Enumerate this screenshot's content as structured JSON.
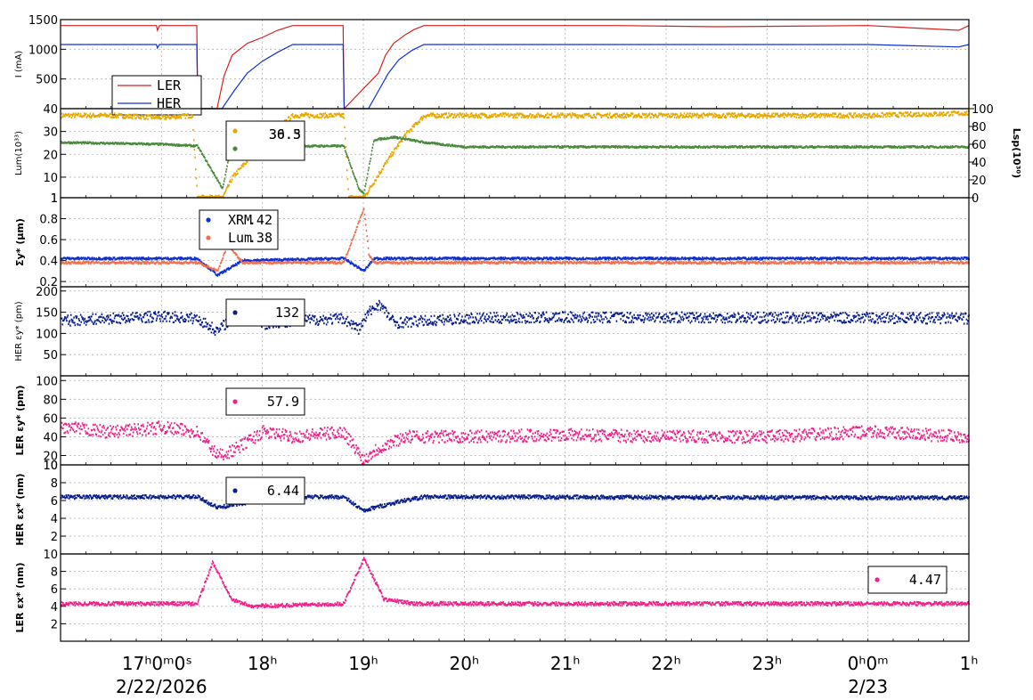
{
  "colors": {
    "red": "#d62020",
    "blue": "#1030d0",
    "orange": "#e8a800",
    "green": "#4a8a3c",
    "navy": "#0a1f8a",
    "pink": "#f0208a",
    "salmon": "#f07050",
    "grid": "#b0b0b0"
  },
  "x_axis": {
    "range_hours": [
      16.0,
      25.0
    ],
    "ticks": [
      {
        "h": 17.0,
        "label": "17ʰ0ᵐ0ˢ"
      },
      {
        "h": 18.0,
        "label": "18ʰ"
      },
      {
        "h": 19.0,
        "label": "19ʰ"
      },
      {
        "h": 20.0,
        "label": "20ʰ"
      },
      {
        "h": 21.0,
        "label": "21ʰ"
      },
      {
        "h": 22.0,
        "label": "22ʰ"
      },
      {
        "h": 23.0,
        "label": "23ʰ"
      },
      {
        "h": 24.0,
        "label": "0ʰ0ᵐ"
      },
      {
        "h": 25.0,
        "label": "1ʰ"
      }
    ],
    "date_labels": [
      {
        "h": 17.0,
        "label": "2/22/2026"
      },
      {
        "h": 24.0,
        "label": "2/23"
      }
    ]
  },
  "chart_data": [
    {
      "type": "line",
      "ylabel": "I (mA)",
      "ylim": [
        0,
        1500
      ],
      "yticks": [
        500,
        1000,
        1500
      ],
      "legend": {
        "position": "top-left",
        "entries": [
          {
            "name": "LER",
            "color": "#d62020"
          },
          {
            "name": "HER",
            "color": "#1030d0"
          }
        ]
      },
      "series": [
        {
          "name": "LER",
          "x": [
            16.0,
            16.95,
            16.96,
            16.98,
            17.35,
            17.36,
            17.55,
            17.62,
            17.7,
            17.85,
            18.0,
            18.15,
            18.3,
            18.8,
            18.81,
            19.15,
            19.22,
            19.3,
            19.42,
            19.5,
            19.6,
            19.8,
            21.5,
            22.5,
            24.0,
            24.9,
            25.0
          ],
          "y": [
            1400,
            1400,
            1320,
            1400,
            1400,
            0,
            0,
            550,
            900,
            1100,
            1200,
            1320,
            1400,
            1400,
            0,
            600,
            900,
            1100,
            1250,
            1330,
            1400,
            1400,
            1400,
            1380,
            1400,
            1320,
            1400
          ]
        },
        {
          "name": "HER",
          "x": [
            16.0,
            16.95,
            16.96,
            16.98,
            17.35,
            17.36,
            17.6,
            17.72,
            17.85,
            18.0,
            18.15,
            18.3,
            18.8,
            18.81,
            19.05,
            19.15,
            19.25,
            19.35,
            19.48,
            19.6,
            19.8,
            22.5,
            24.0,
            24.9,
            25.0
          ],
          "y": [
            1080,
            1080,
            1020,
            1080,
            1080,
            0,
            0,
            300,
            600,
            800,
            950,
            1080,
            1080,
            0,
            0,
            300,
            600,
            820,
            980,
            1080,
            1080,
            1080,
            1080,
            1040,
            1080
          ]
        }
      ]
    },
    {
      "type": "scatter",
      "ylabel": "Lum(10³³)",
      "ylim": [
        1,
        40
      ],
      "yticks": [
        1,
        10,
        20,
        30,
        40
      ],
      "y2label": "Lsp(10³⁰)",
      "y2lim": [
        0,
        100
      ],
      "y2ticks": [
        0,
        20,
        40,
        60,
        80,
        100
      ],
      "legend": {
        "position": "top-left",
        "entries": [
          {
            "value": "36.3",
            "color": "#e8a800"
          },
          {
            "value": "30.5",
            "color": "#4a8a3c"
          }
        ]
      },
      "series": [
        {
          "name": "Lum",
          "axis": "left",
          "x": [
            16.0,
            16.5,
            17.0,
            17.3,
            17.35,
            17.6,
            17.7,
            17.9,
            18.1,
            18.3,
            18.8,
            18.85,
            19.0,
            19.2,
            19.4,
            19.6,
            20.0,
            21.0,
            22.0,
            23.0,
            24.0,
            25.0
          ],
          "y": [
            37,
            37,
            36,
            37,
            1,
            1,
            10,
            20,
            30,
            37,
            37,
            1,
            1,
            15,
            28,
            37,
            37,
            37,
            37,
            37,
            37,
            38
          ]
        },
        {
          "name": "Lsp",
          "axis": "right",
          "x": [
            16.0,
            17.0,
            17.35,
            17.6,
            17.7,
            18.0,
            18.3,
            18.8,
            18.95,
            19.0,
            19.1,
            19.3,
            19.6,
            20.0,
            21.0,
            22.0,
            23.0,
            24.0,
            25.0
          ],
          "y": [
            62,
            60,
            58,
            10,
            68,
            68,
            58,
            58,
            10,
            5,
            65,
            68,
            62,
            57,
            57,
            57,
            57,
            57,
            57
          ]
        }
      ]
    },
    {
      "type": "scatter",
      "ylabel": "Σy* (μm)",
      "ylim": [
        0.15,
        1.0
      ],
      "yticks": [
        0.2,
        0.4,
        0.6,
        0.8,
        1.0
      ],
      "legend": {
        "position": "top-left",
        "entries": [
          {
            "name": "XRM",
            "value": ".42",
            "color": "#1030d0"
          },
          {
            "name": "Lum",
            "value": ".38",
            "color": "#f07050"
          }
        ]
      },
      "series": [
        {
          "name": "XRM",
          "x": [
            16.0,
            17.35,
            17.55,
            17.8,
            18.8,
            19.0,
            19.1,
            19.5,
            25.0
          ],
          "y": [
            0.42,
            0.42,
            0.26,
            0.4,
            0.42,
            0.3,
            0.42,
            0.42,
            0.42
          ]
        },
        {
          "name": "Lum",
          "x": [
            16.0,
            17.35,
            17.55,
            17.65,
            17.8,
            18.8,
            19.0,
            19.05,
            19.1,
            19.2,
            25.0
          ],
          "y": [
            0.38,
            0.38,
            0.3,
            0.55,
            0.38,
            0.38,
            0.9,
            0.45,
            0.38,
            0.38,
            0.38
          ]
        }
      ]
    },
    {
      "type": "scatter",
      "ylabel": "HER εy* (pm)",
      "ylim": [
        0,
        210
      ],
      "yticks": [
        50,
        100,
        150,
        200
      ],
      "legend": {
        "position": "top-left",
        "entries": [
          {
            "value": "132",
            "color": "#0a1f8a"
          }
        ]
      },
      "series": [
        {
          "name": "HER εy*",
          "x": [
            16.0,
            16.5,
            17.0,
            17.35,
            17.55,
            17.7,
            17.8,
            18.0,
            18.3,
            18.8,
            18.95,
            19.05,
            19.15,
            19.3,
            20.0,
            21.0,
            22.0,
            23.0,
            24.0,
            25.0
          ],
          "y": [
            130,
            135,
            140,
            135,
            105,
            140,
            170,
            120,
            130,
            135,
            110,
            150,
            170,
            125,
            135,
            138,
            138,
            137,
            137,
            135
          ]
        }
      ]
    },
    {
      "type": "scatter",
      "ylabel": "LER εy* (pm)",
      "ylim": [
        10,
        105
      ],
      "yticks": [
        10,
        20,
        40,
        60,
        80,
        100
      ],
      "legend": {
        "position": "top-left",
        "entries": [
          {
            "value": "57.9",
            "color": "#f0208a"
          }
        ]
      },
      "series": [
        {
          "name": "LER εy*",
          "x": [
            16.0,
            16.5,
            17.0,
            17.35,
            17.55,
            17.7,
            18.0,
            18.3,
            18.8,
            19.0,
            19.1,
            19.4,
            20.0,
            21.0,
            22.0,
            23.0,
            24.0,
            25.0
          ],
          "y": [
            50,
            45,
            50,
            45,
            20,
            25,
            45,
            40,
            45,
            15,
            25,
            40,
            40,
            42,
            40,
            40,
            45,
            40
          ]
        }
      ]
    },
    {
      "type": "scatter",
      "ylabel": "HER εx* (nm)",
      "ylim": [
        0,
        10
      ],
      "yticks": [
        2,
        4,
        6,
        8,
        10
      ],
      "legend": {
        "position": "top-left",
        "entries": [
          {
            "value": "6.44",
            "color": "#0a1f8a"
          }
        ]
      },
      "series": [
        {
          "name": "HER εx*",
          "x": [
            16.0,
            17.35,
            17.55,
            17.7,
            18.0,
            18.3,
            18.8,
            19.0,
            19.1,
            19.4,
            19.6,
            25.0
          ],
          "y": [
            6.4,
            6.4,
            5.2,
            5.5,
            6.1,
            6.4,
            6.4,
            4.8,
            5.2,
            6.0,
            6.4,
            6.3
          ]
        }
      ]
    },
    {
      "type": "scatter",
      "ylabel": "LER εx* (nm)",
      "ylim": [
        0,
        10
      ],
      "yticks": [
        2,
        4,
        6,
        8,
        10
      ],
      "legend": {
        "position": "top-right",
        "entries": [
          {
            "value": "4.47",
            "color": "#f0208a"
          }
        ]
      },
      "series": [
        {
          "name": "LER εx*",
          "x": [
            16.0,
            17.35,
            17.5,
            17.7,
            17.9,
            18.8,
            19.0,
            19.2,
            19.5,
            25.0
          ],
          "y": [
            4.3,
            4.3,
            9.0,
            4.7,
            4.0,
            4.3,
            9.5,
            4.8,
            4.3,
            4.3
          ]
        }
      ]
    }
  ]
}
